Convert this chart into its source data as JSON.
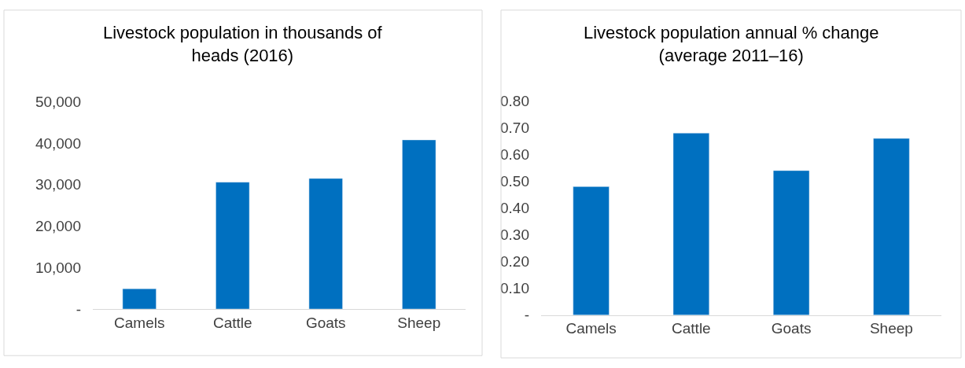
{
  "chart_data": [
    {
      "type": "bar",
      "title": "Livestock population in thousands of heads (2016)",
      "categories": [
        "Camels",
        "Cattle",
        "Goats",
        "Sheep"
      ],
      "series": [
        {
          "color": "#0070c0",
          "values": [
            4900,
            30600,
            31500,
            40800
          ]
        }
      ],
      "ylim": [
        0,
        50000
      ],
      "yticks": [
        {
          "value": 0,
          "label": "-"
        },
        {
          "value": 10000,
          "label": "10,000"
        },
        {
          "value": 20000,
          "label": "20,000"
        },
        {
          "value": 30000,
          "label": "30,000"
        },
        {
          "value": 40000,
          "label": "40,000"
        },
        {
          "value": 50000,
          "label": "50,000"
        }
      ],
      "grid": false
    },
    {
      "type": "bar",
      "title": "Livestock population annual % change (average 2011–16)",
      "categories": [
        "Camels",
        "Cattle",
        "Goats",
        "Sheep"
      ],
      "series": [
        {
          "color": "#0070c0",
          "values": [
            0.48,
            0.68,
            0.54,
            0.66
          ]
        }
      ],
      "ylim": [
        0,
        0.8
      ],
      "yticks": [
        {
          "value": 0,
          "label": "-"
        },
        {
          "value": 0.1,
          "label": "0.10"
        },
        {
          "value": 0.2,
          "label": "0.20"
        },
        {
          "value": 0.3,
          "label": "0.30"
        },
        {
          "value": 0.4,
          "label": "0.40"
        },
        {
          "value": 0.5,
          "label": "0.50"
        },
        {
          "value": 0.6,
          "label": "0.60"
        },
        {
          "value": 0.7,
          "label": "0.70"
        },
        {
          "value": 0.8,
          "label": "0.80"
        }
      ],
      "grid": false
    }
  ]
}
